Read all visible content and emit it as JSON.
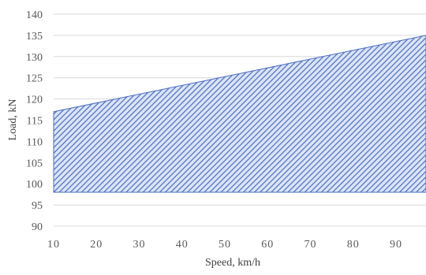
{
  "chart_data": {
    "type": "area",
    "title": "",
    "xlabel": "Speed, km/h",
    "ylabel": "Load, kN",
    "xlim": [
      10,
      97
    ],
    "ylim": [
      90,
      140
    ],
    "x_ticks": [
      10,
      20,
      30,
      40,
      50,
      60,
      70,
      80,
      90
    ],
    "y_ticks": [
      90,
      95,
      100,
      105,
      110,
      115,
      120,
      125,
      130,
      135,
      140
    ],
    "grid": true,
    "legend": "none",
    "series": [
      {
        "x": [
          10,
          97
        ],
        "upper": [
          117,
          135
        ],
        "lower": [
          98,
          98
        ]
      }
    ],
    "colors": {
      "fill_background": "#dbe4f5",
      "hatch": "#4a6cc4",
      "outline": "#4a6cc4",
      "grid": "#d9d9d9"
    }
  }
}
